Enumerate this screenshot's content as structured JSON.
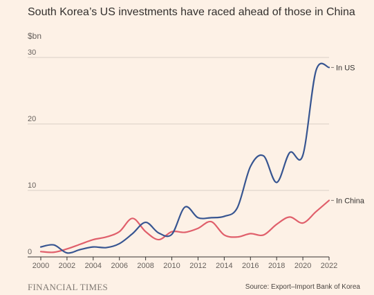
{
  "header": {
    "title": "South Korea’s US investments have raced ahead of those in China"
  },
  "footer": {
    "brand": "FINANCIAL TIMES",
    "source": "Source: Export–Import Bank of Korea"
  },
  "colors": {
    "background": "#fdf1e6",
    "us": "#375591",
    "china": "#e05f6b",
    "grid": "#d9cfc6",
    "axis": "#33302e"
  },
  "chart_data": {
    "type": "line",
    "title": "South Korea’s US investments have raced ahead of those in China",
    "ylabel": "$bn",
    "xlabel": "",
    "xlim": [
      2000,
      2022
    ],
    "ylim": [
      0,
      30
    ],
    "yticks": [
      0,
      10,
      20,
      30
    ],
    "xticks": [
      2000,
      2002,
      2004,
      2006,
      2008,
      2010,
      2012,
      2014,
      2016,
      2018,
      2020,
      2022
    ],
    "grid": "horizontal",
    "legend": "inline-right",
    "x": [
      2000,
      2001,
      2002,
      2003,
      2004,
      2005,
      2006,
      2007,
      2008,
      2009,
      2010,
      2011,
      2012,
      2013,
      2014,
      2015,
      2016,
      2017,
      2018,
      2019,
      2020,
      2021,
      2022
    ],
    "series": [
      {
        "name": "In US",
        "values": [
          1.5,
          1.8,
          0.6,
          1.1,
          1.5,
          1.4,
          2.0,
          3.5,
          5.2,
          3.6,
          3.4,
          7.5,
          5.9,
          5.9,
          6.1,
          7.4,
          13.6,
          15.2,
          11.2,
          15.7,
          15.3,
          28.0,
          28.5
        ]
      },
      {
        "name": "In China",
        "values": [
          0.8,
          0.7,
          1.2,
          1.9,
          2.6,
          3.0,
          3.8,
          5.8,
          3.8,
          2.6,
          3.8,
          3.7,
          4.3,
          5.3,
          3.3,
          3.0,
          3.5,
          3.3,
          4.9,
          6.0,
          5.1,
          6.8,
          8.5
        ]
      }
    ]
  }
}
